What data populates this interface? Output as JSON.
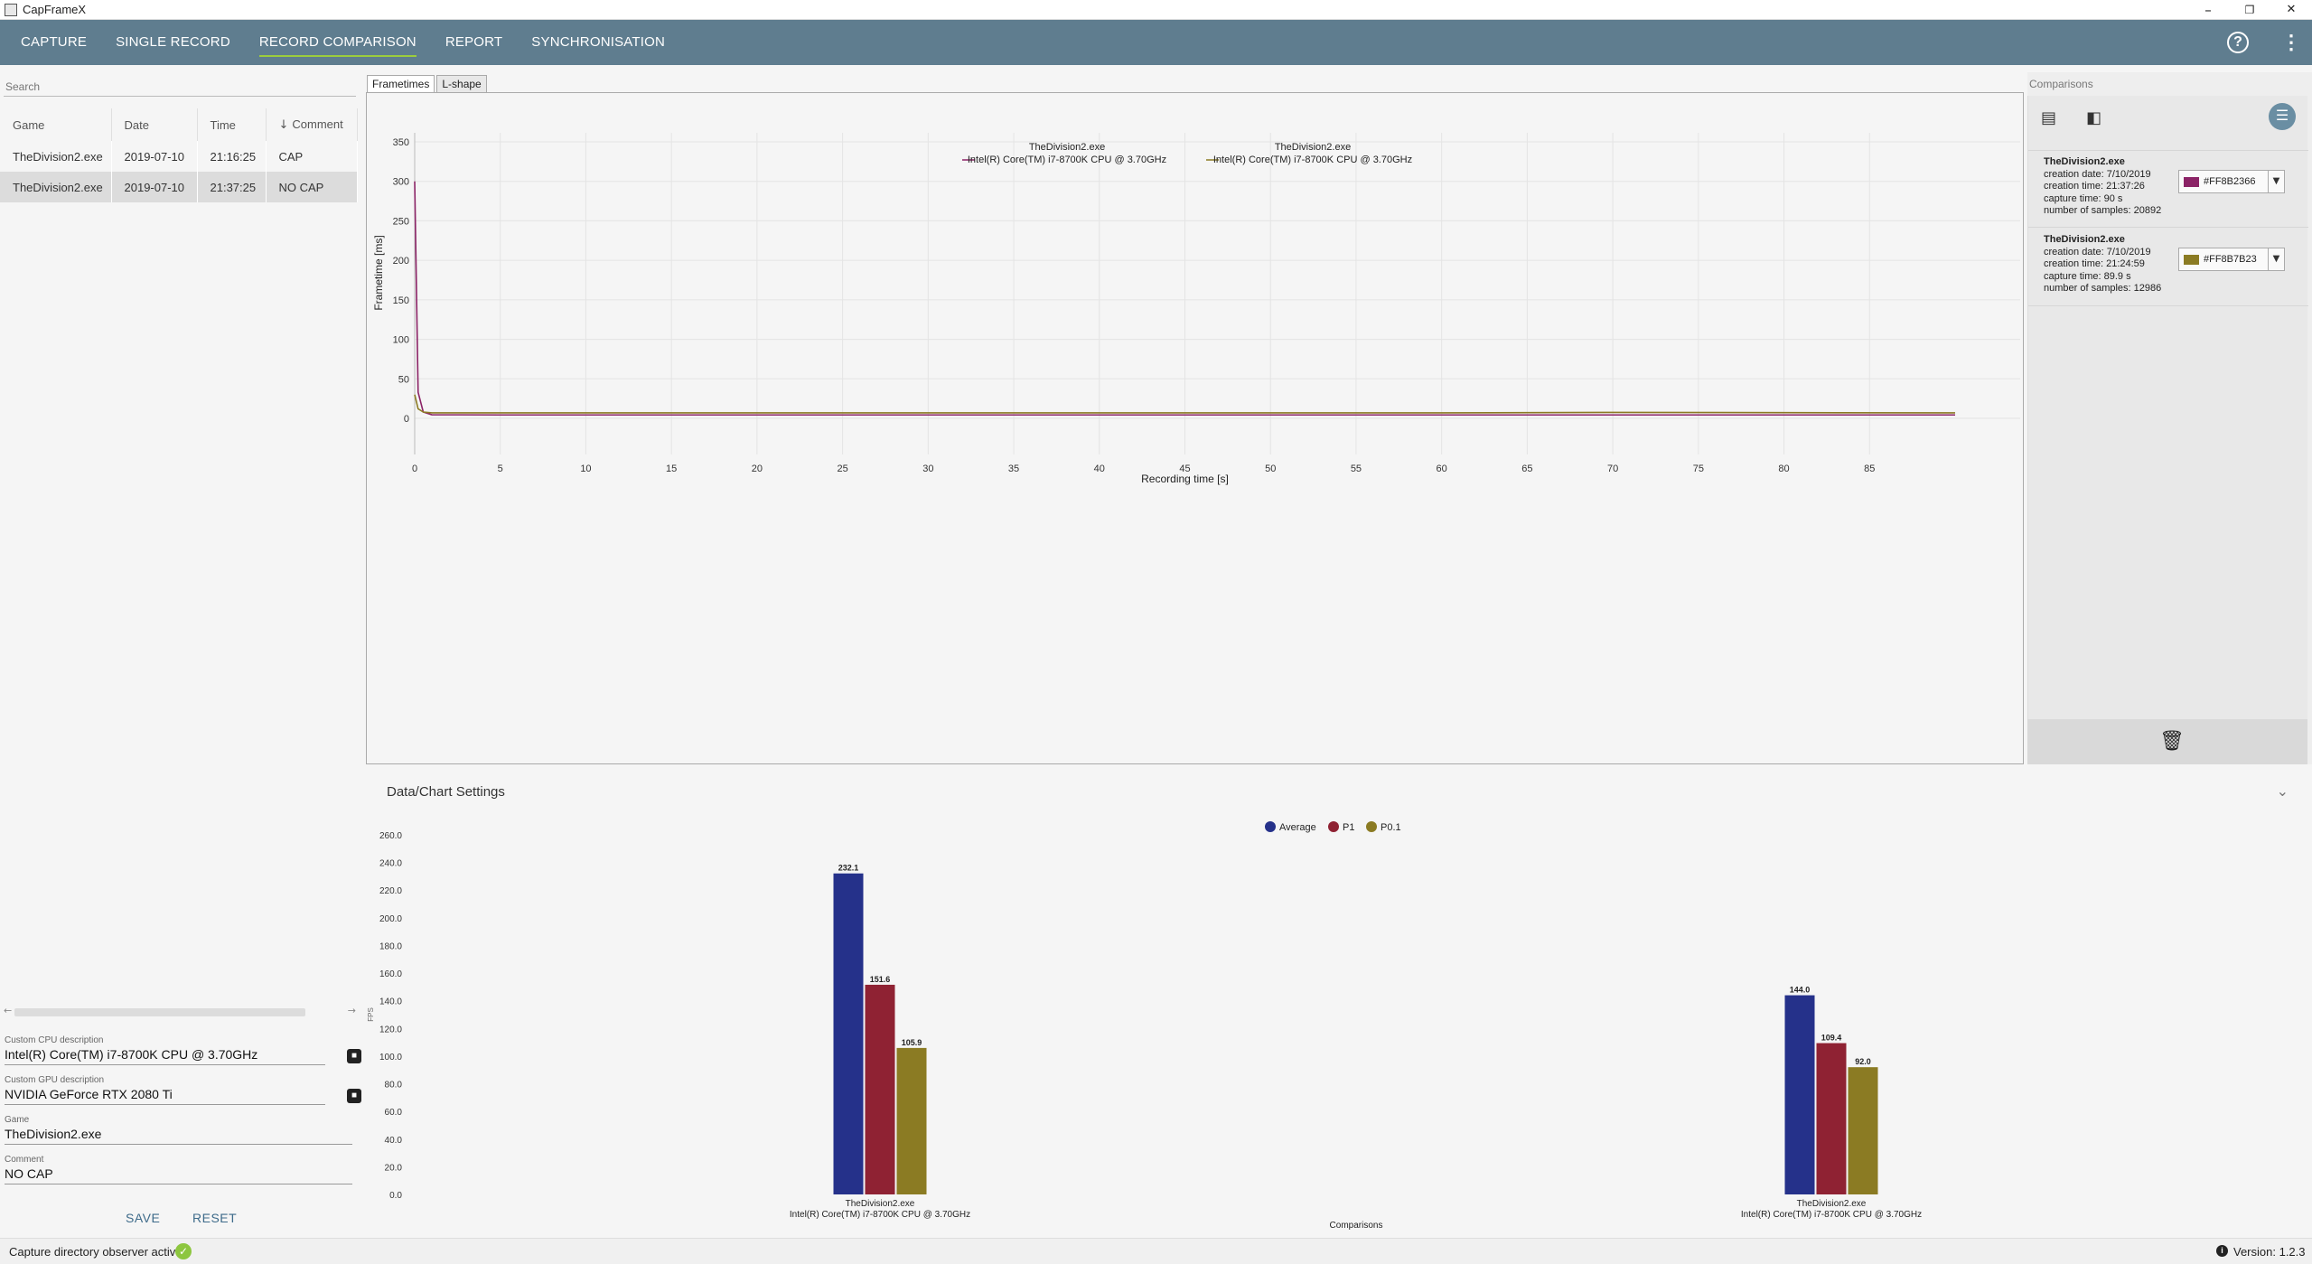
{
  "window": {
    "title": "CapFrameX",
    "minimize": "–",
    "restore": "❐",
    "close": "✕"
  },
  "nav": {
    "tabs": [
      {
        "label": "CAPTURE"
      },
      {
        "label": "SINGLE RECORD"
      },
      {
        "label": "RECORD COMPARISON"
      },
      {
        "label": "REPORT"
      },
      {
        "label": "SYNCHRONISATION"
      }
    ],
    "active_tab": "RECORD COMPARISON",
    "help": "?",
    "menu": "⋮"
  },
  "left": {
    "search_placeholder": "Search",
    "columns": [
      "Game",
      "Date",
      "Time",
      "Comment"
    ],
    "sort_arrow": "↓",
    "rows": [
      {
        "game": "TheDivision2.exe",
        "date": "2019-07-10",
        "time": "21:16:25",
        "comment": "CAP"
      },
      {
        "game": "TheDivision2.exe",
        "date": "2019-07-10",
        "time": "21:37:25",
        "comment": "NO CAP"
      }
    ],
    "selected_row": 1,
    "scroll_left": "←",
    "scroll_right": "→",
    "cpu_label": "Custom CPU description",
    "cpu_value": "Intel(R) Core(TM) i7-8700K CPU @ 3.70GHz",
    "gpu_label": "Custom GPU description",
    "gpu_value": "NVIDIA GeForce RTX 2080 Ti",
    "game_label": "Game",
    "game_value": "TheDivision2.exe",
    "comment_label": "Comment",
    "comment_value": "NO CAP",
    "save_label": "SAVE",
    "reset_label": "RESET"
  },
  "chart_tabs": [
    "Frametimes",
    "L-shape"
  ],
  "comparisons": {
    "title": "Comparisons",
    "entries": [
      {
        "name": "TheDivision2.exe",
        "creation_date": "creation date: 7/10/2019",
        "creation_time": "creation time: 21:37:26",
        "capture_time": "capture time: 90 s",
        "samples": "number of samples: 20892",
        "color_hex": "#FF8B2366",
        "color": "#8B2366"
      },
      {
        "name": "TheDivision2.exe",
        "creation_date": "creation date: 7/10/2019",
        "creation_time": "creation time: 21:24:59",
        "capture_time": "capture time: 89.9 s",
        "samples": "number of samples: 12986",
        "color_hex": "#FF8B7B23",
        "color": "#8B7B23"
      }
    ]
  },
  "settings": {
    "title": "Data/Chart Settings",
    "chevron": "⌄"
  },
  "status": {
    "text": "Capture directory observer active:",
    "check": "✓",
    "version": "Version: 1.2.3",
    "info": "i"
  },
  "chart_data": [
    {
      "type": "line",
      "title": "",
      "xlabel": "Recording time [s]",
      "ylabel": "Frametime [ms]",
      "xlim": [
        0,
        90
      ],
      "ylim": [
        0,
        350
      ],
      "xticks": [
        0,
        5,
        10,
        15,
        20,
        25,
        30,
        35,
        40,
        45,
        50,
        55,
        60,
        65,
        70,
        75,
        80,
        85
      ],
      "yticks": [
        0,
        50,
        100,
        150,
        200,
        250,
        300,
        350
      ],
      "grid": true,
      "legend_position": "top-center",
      "series": [
        {
          "name": "TheDivision2.exe\nIntel(R) Core(TM) i7-8700K CPU @ 3.70GHz",
          "color": "#8B2366",
          "x": [
            0,
            0.2,
            0.5,
            1,
            5,
            10,
            20,
            30,
            40,
            50,
            60,
            70,
            80,
            90
          ],
          "y": [
            300,
            33,
            8,
            4.5,
            4.3,
            4.3,
            4.3,
            4.3,
            4.3,
            4.3,
            4.3,
            4.3,
            4.3,
            4.3
          ]
        },
        {
          "name": "TheDivision2.exe\nIntel(R) Core(TM) i7-8700K CPU @ 3.70GHz",
          "color": "#8B7B23",
          "x": [
            0,
            0.2,
            0.5,
            1,
            5,
            10,
            20,
            30,
            40,
            50,
            60,
            70,
            80,
            90
          ],
          "y": [
            30,
            12,
            8,
            6.9,
            6.9,
            6.9,
            6.9,
            6.9,
            6.9,
            6.9,
            6.9,
            7.5,
            7.2,
            6.9
          ]
        }
      ]
    },
    {
      "type": "bar",
      "title": "",
      "xlabel": "Comparisons",
      "ylabel": "FPS",
      "ylim": [
        0,
        260
      ],
      "yticks": [
        0,
        20,
        40,
        60,
        80,
        100,
        120,
        140,
        160,
        180,
        200,
        220,
        240,
        260
      ],
      "legend_position": "top-center",
      "categories": [
        "TheDivision2.exe\nIntel(R) Core(TM) i7-8700K CPU @ 3.70GHz",
        "TheDivision2.exe\nIntel(R) Core(TM) i7-8700K CPU @ 3.70GHz"
      ],
      "series": [
        {
          "name": "Average",
          "color": "#25318a",
          "values": [
            232.1,
            144.0
          ]
        },
        {
          "name": "P1",
          "color": "#8f2233",
          "values": [
            151.6,
            109.4
          ]
        },
        {
          "name": "P0.1",
          "color": "#8b7b23",
          "values": [
            105.9,
            92.0
          ]
        }
      ]
    }
  ]
}
